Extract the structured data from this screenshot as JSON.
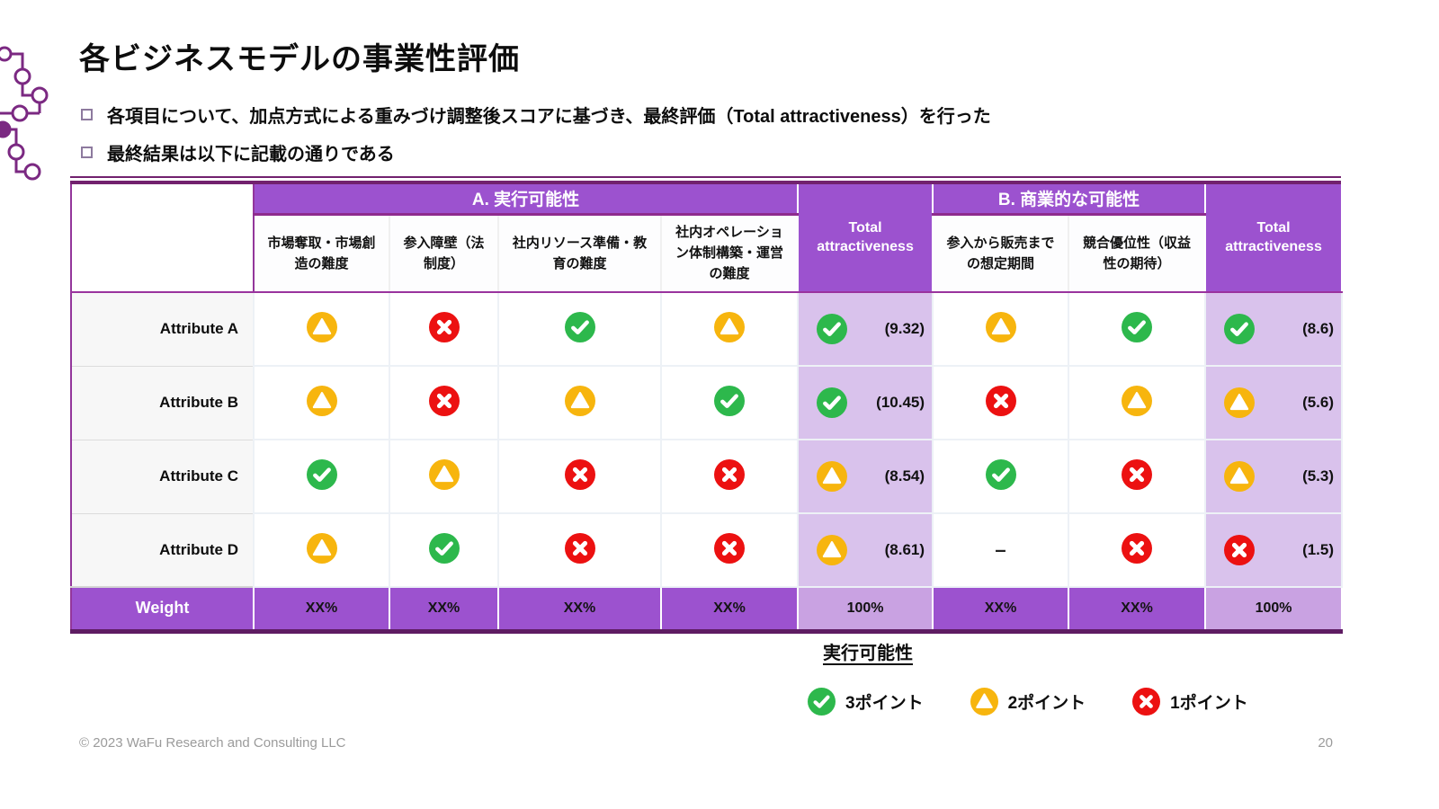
{
  "header": {
    "title": "各ビジネスモデルの事業性評価",
    "bullets": [
      "各項目について、加点方式による重みづけ調整後スコアに基づき、最終評価（Total attractiveness）を行った",
      "最終結果は以下に記載の通りである"
    ]
  },
  "table": {
    "groups": [
      {
        "label": "A. 実行可能性"
      },
      {
        "label": "Total attractiveness"
      },
      {
        "label": "B. 商業的な可能性"
      },
      {
        "label": "Total attractiveness"
      }
    ],
    "subheaders_a": [
      "市場奪取・市場創造の難度",
      "参入障壁（法制度）",
      "社内リソース準備・教育の難度",
      "社内オペレーション体制構築・運営の難度"
    ],
    "subheaders_b": [
      "参入から販売までの想定期間",
      "競合優位性（収益性の期待）"
    ],
    "rows": [
      {
        "label": "Attribute A",
        "a_icons": [
          "warning",
          "cross",
          "check",
          "warning"
        ],
        "total_a": {
          "icon": "check",
          "value": "(9.32)"
        },
        "b_icons": [
          "warning",
          "check"
        ],
        "total_b": {
          "icon": "check",
          "value": "(8.6)"
        }
      },
      {
        "label": "Attribute B",
        "a_icons": [
          "warning",
          "cross",
          "warning",
          "check"
        ],
        "total_a": {
          "icon": "check",
          "value": "(10.45)"
        },
        "b_icons": [
          "cross",
          "warning"
        ],
        "total_b": {
          "icon": "warning",
          "value": "(5.6)"
        }
      },
      {
        "label": "Attribute C",
        "a_icons": [
          "check",
          "warning",
          "cross",
          "cross"
        ],
        "total_a": {
          "icon": "warning",
          "value": "(8.54)"
        },
        "b_icons": [
          "check",
          "cross"
        ],
        "total_b": {
          "icon": "warning",
          "value": "(5.3)"
        }
      },
      {
        "label": "Attribute D",
        "a_icons": [
          "warning",
          "check",
          "cross",
          "cross"
        ],
        "total_a": {
          "icon": "warning",
          "value": "(8.61)"
        },
        "b_icons": [
          "dash",
          "cross"
        ],
        "total_b": {
          "icon": "cross",
          "value": "(1.5)"
        }
      }
    ],
    "weight_row": {
      "label": "Weight",
      "a_values": [
        "XX%",
        "XX%",
        "XX%",
        "XX%"
      ],
      "total_a": "100%",
      "b_values": [
        "XX%",
        "XX%"
      ],
      "total_b": "100%"
    }
  },
  "legend": {
    "title": "実行可能性",
    "items": [
      {
        "icon": "check",
        "label": "3ポイント"
      },
      {
        "icon": "warning",
        "label": "2ポイント"
      },
      {
        "icon": "cross",
        "label": "1ポイント"
      }
    ]
  },
  "footer": {
    "copyright": "© 2023 WaFu Research and Consulting LLC",
    "page": "20"
  },
  "icons": {
    "check": "green-circle-checkmark",
    "warning": "amber-circle-triangle",
    "cross": "red-circle-x",
    "bullet": "hollow-square",
    "logo": "circuit-nodes"
  },
  "colors": {
    "purple": "#9c52cf",
    "light_purple": "#d9c2ec",
    "weight_total_purple": "#c9a2e2",
    "dark_purple_line": "#72216e",
    "green": "#2db84c",
    "amber": "#f7b50e",
    "red": "#ec1111",
    "label_bg": "#f7f7f7"
  }
}
